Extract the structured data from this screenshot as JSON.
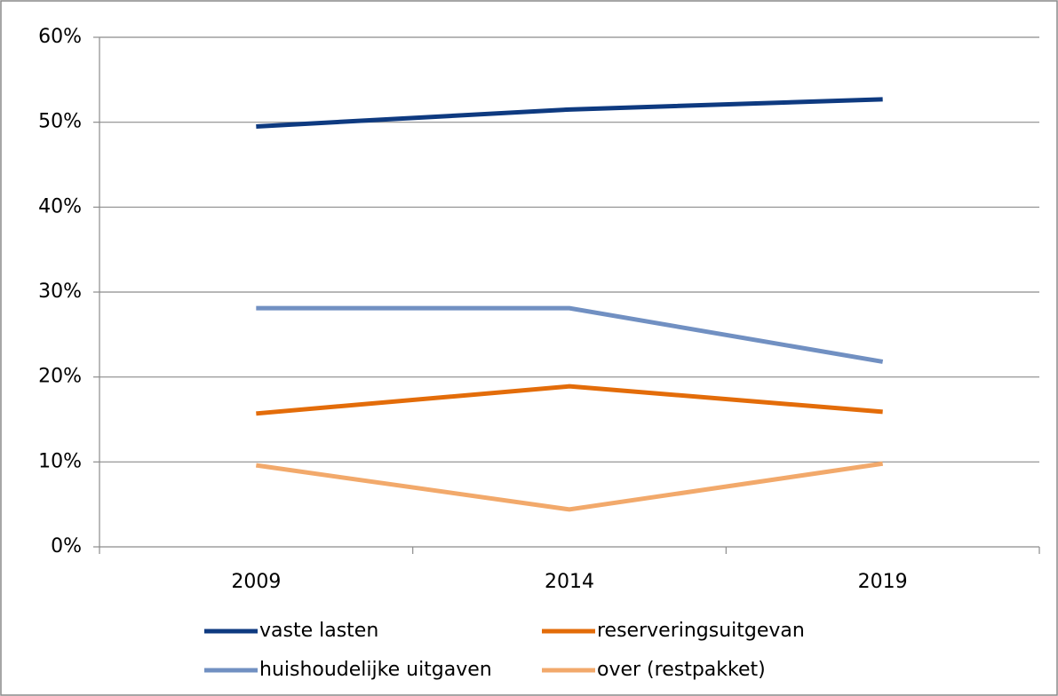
{
  "chart_data": {
    "type": "line",
    "categories": [
      "2009",
      "2014",
      "2019"
    ],
    "series": [
      {
        "name": "vaste lasten",
        "color": "#0e3a80",
        "values": [
          49.5,
          51.5,
          52.7
        ]
      },
      {
        "name": "reserveringsuitgevan",
        "color": "#e36c09",
        "values": [
          15.7,
          18.9,
          15.9
        ]
      },
      {
        "name": "huishoudelijke uitgaven",
        "color": "#7190c2",
        "values": [
          28.1,
          28.1,
          21.8
        ]
      },
      {
        "name": "over (restpakket)",
        "color": "#f2a96b",
        "values": [
          9.6,
          4.4,
          9.8
        ]
      }
    ],
    "ylim": [
      0,
      60
    ],
    "yticks": [
      {
        "value": 0,
        "label": "0%"
      },
      {
        "value": 10,
        "label": "10%"
      },
      {
        "value": 20,
        "label": "20%"
      },
      {
        "value": 30,
        "label": "30%"
      },
      {
        "value": 40,
        "label": "40%"
      },
      {
        "value": 50,
        "label": "50%"
      },
      {
        "value": 60,
        "label": "60%"
      }
    ],
    "grid": true,
    "legend": "bottom"
  }
}
